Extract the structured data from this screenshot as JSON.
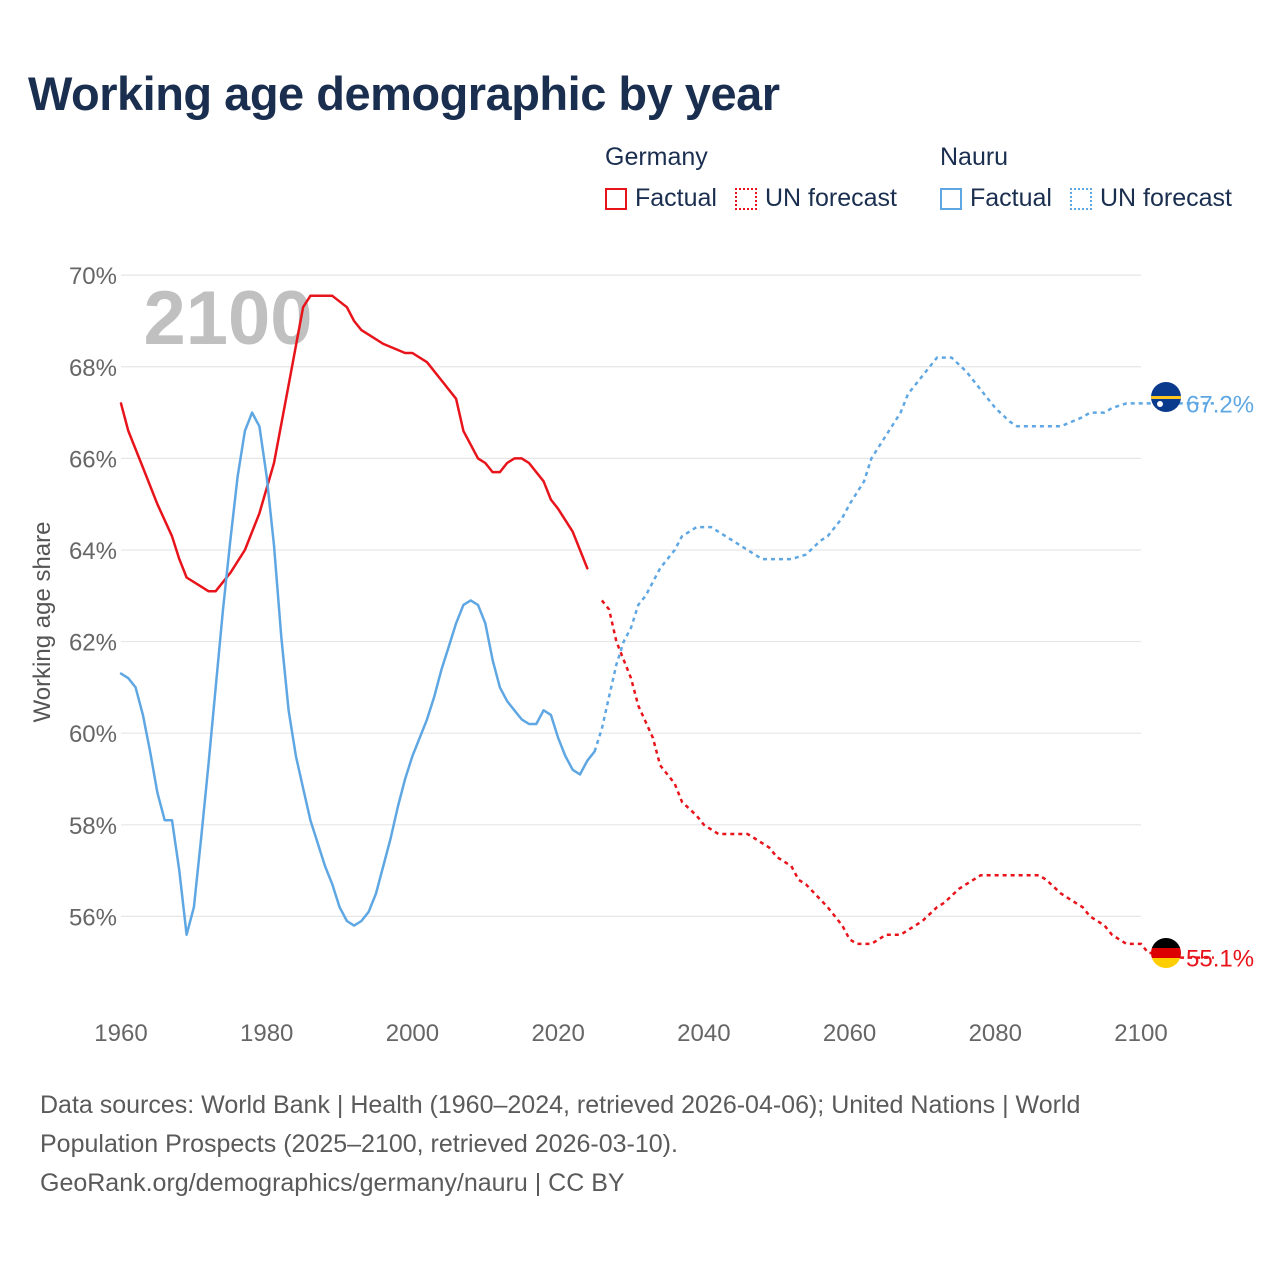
{
  "title": "Working age demographic by year",
  "legend": [
    {
      "country": "Germany",
      "color": "#e8141b",
      "items": [
        {
          "label": "Factual",
          "style": "solid"
        },
        {
          "label": "UN forecast",
          "style": "dotted"
        }
      ]
    },
    {
      "country": "Nauru",
      "color": "#5fa7e3",
      "items": [
        {
          "label": "Factual",
          "style": "solid"
        },
        {
          "label": "UN forecast",
          "style": "dotted"
        }
      ]
    }
  ],
  "chart_data": {
    "type": "line",
    "title": "Working age demographic by year",
    "xlabel": "",
    "ylabel": "Working age share",
    "year_watermark": "2100",
    "xlim": [
      1960,
      2100
    ],
    "ylim": [
      54,
      70.2
    ],
    "xticks": [
      1960,
      1980,
      2000,
      2020,
      2040,
      2060,
      2080,
      2100
    ],
    "yticks": [
      56,
      58,
      60,
      62,
      64,
      66,
      68,
      70
    ],
    "ytick_labels": [
      "56%",
      "58%",
      "60%",
      "62%",
      "64%",
      "66%",
      "68%",
      "70%"
    ],
    "grid": true,
    "factual_end_year": 2025,
    "series": [
      {
        "name": "Germany",
        "color": "#e8141b",
        "end_label": "55.1%",
        "flag": "germany-flag",
        "points": [
          [
            1960,
            67.2
          ],
          [
            1961,
            66.6
          ],
          [
            1963,
            65.8
          ],
          [
            1965,
            65.0
          ],
          [
            1967,
            64.3
          ],
          [
            1968,
            63.8
          ],
          [
            1969,
            63.4
          ],
          [
            1971,
            63.2
          ],
          [
            1972,
            63.1
          ],
          [
            1973,
            63.1
          ],
          [
            1975,
            63.5
          ],
          [
            1977,
            64.0
          ],
          [
            1979,
            64.8
          ],
          [
            1981,
            65.9
          ],
          [
            1983,
            67.6
          ],
          [
            1985,
            69.3
          ],
          [
            1986,
            69.55
          ],
          [
            1989,
            69.55
          ],
          [
            1991,
            69.3
          ],
          [
            1992,
            69.0
          ],
          [
            1993,
            68.8
          ],
          [
            1996,
            68.5
          ],
          [
            1999,
            68.3
          ],
          [
            2000,
            68.3
          ],
          [
            2002,
            68.1
          ],
          [
            2004,
            67.7
          ],
          [
            2006,
            67.3
          ],
          [
            2007,
            66.6
          ],
          [
            2009,
            66.0
          ],
          [
            2010,
            65.9
          ],
          [
            2011,
            65.7
          ],
          [
            2012,
            65.7
          ],
          [
            2013,
            65.9
          ],
          [
            2014,
            66.0
          ],
          [
            2015,
            66.0
          ],
          [
            2016,
            65.9
          ],
          [
            2018,
            65.5
          ],
          [
            2019,
            65.1
          ],
          [
            2020,
            64.9
          ],
          [
            2022,
            64.4
          ],
          [
            2024,
            63.6
          ],
          [
            2026,
            62.9
          ],
          [
            2027,
            62.7
          ],
          [
            2028,
            62.0
          ],
          [
            2030,
            61.2
          ],
          [
            2031,
            60.6
          ],
          [
            2033,
            59.9
          ],
          [
            2034,
            59.3
          ],
          [
            2036,
            58.9
          ],
          [
            2037,
            58.5
          ],
          [
            2039,
            58.2
          ],
          [
            2040,
            58.0
          ],
          [
            2042,
            57.8
          ],
          [
            2044,
            57.8
          ],
          [
            2046,
            57.8
          ],
          [
            2047,
            57.7
          ],
          [
            2049,
            57.5
          ],
          [
            2050,
            57.3
          ],
          [
            2052,
            57.1
          ],
          [
            2053,
            56.8
          ],
          [
            2054,
            56.7
          ],
          [
            2057,
            56.2
          ],
          [
            2059,
            55.8
          ],
          [
            2060,
            55.5
          ],
          [
            2061,
            55.4
          ],
          [
            2063,
            55.4
          ],
          [
            2065,
            55.6
          ],
          [
            2067,
            55.6
          ],
          [
            2068,
            55.7
          ],
          [
            2070,
            55.9
          ],
          [
            2072,
            56.2
          ],
          [
            2073,
            56.3
          ],
          [
            2075,
            56.6
          ],
          [
            2076,
            56.7
          ],
          [
            2078,
            56.9
          ],
          [
            2086,
            56.9
          ],
          [
            2087,
            56.8
          ],
          [
            2089,
            56.5
          ],
          [
            2091,
            56.3
          ],
          [
            2092,
            56.2
          ],
          [
            2093,
            56.0
          ],
          [
            2095,
            55.8
          ],
          [
            2096,
            55.6
          ],
          [
            2097,
            55.5
          ],
          [
            2098,
            55.4
          ],
          [
            2100,
            55.4
          ],
          [
            2101,
            55.2
          ],
          [
            2103,
            55.2
          ],
          [
            2104,
            55.1
          ],
          [
            2110,
            55.1
          ]
        ]
      },
      {
        "name": "Nauru",
        "color": "#5fa7e3",
        "end_label": "67.2%",
        "flag": "nauru-flag",
        "points": [
          [
            1960,
            61.3
          ],
          [
            1961,
            61.2
          ],
          [
            1962,
            61.0
          ],
          [
            1963,
            60.4
          ],
          [
            1964,
            59.6
          ],
          [
            1965,
            58.7
          ],
          [
            1966,
            58.1
          ],
          [
            1967,
            58.1
          ],
          [
            1968,
            57.0
          ],
          [
            1969,
            55.6
          ],
          [
            1970,
            56.2
          ],
          [
            1971,
            57.7
          ],
          [
            1972,
            59.3
          ],
          [
            1973,
            61.0
          ],
          [
            1974,
            62.7
          ],
          [
            1975,
            64.2
          ],
          [
            1976,
            65.6
          ],
          [
            1977,
            66.6
          ],
          [
            1978,
            67.0
          ],
          [
            1979,
            66.7
          ],
          [
            1980,
            65.6
          ],
          [
            1981,
            64.1
          ],
          [
            1982,
            62.1
          ],
          [
            1983,
            60.5
          ],
          [
            1984,
            59.5
          ],
          [
            1985,
            58.8
          ],
          [
            1986,
            58.1
          ],
          [
            1987,
            57.6
          ],
          [
            1988,
            57.1
          ],
          [
            1989,
            56.7
          ],
          [
            1990,
            56.2
          ],
          [
            1991,
            55.9
          ],
          [
            1992,
            55.8
          ],
          [
            1993,
            55.9
          ],
          [
            1994,
            56.1
          ],
          [
            1995,
            56.5
          ],
          [
            1996,
            57.1
          ],
          [
            1997,
            57.7
          ],
          [
            1998,
            58.4
          ],
          [
            1999,
            59.0
          ],
          [
            2000,
            59.5
          ],
          [
            2001,
            59.9
          ],
          [
            2002,
            60.3
          ],
          [
            2003,
            60.8
          ],
          [
            2004,
            61.4
          ],
          [
            2005,
            61.9
          ],
          [
            2006,
            62.4
          ],
          [
            2007,
            62.8
          ],
          [
            2008,
            62.9
          ],
          [
            2009,
            62.8
          ],
          [
            2010,
            62.4
          ],
          [
            2011,
            61.6
          ],
          [
            2012,
            61.0
          ],
          [
            2013,
            60.7
          ],
          [
            2014,
            60.5
          ],
          [
            2015,
            60.3
          ],
          [
            2016,
            60.2
          ],
          [
            2017,
            60.2
          ],
          [
            2018,
            60.5
          ],
          [
            2019,
            60.4
          ],
          [
            2020,
            59.9
          ],
          [
            2021,
            59.5
          ],
          [
            2022,
            59.2
          ],
          [
            2023,
            59.1
          ],
          [
            2024,
            59.4
          ],
          [
            2025,
            59.6
          ],
          [
            2026,
            60.1
          ],
          [
            2027,
            60.8
          ],
          [
            2028,
            61.5
          ],
          [
            2029,
            62.0
          ],
          [
            2030,
            62.3
          ],
          [
            2031,
            62.8
          ],
          [
            2032,
            63.0
          ],
          [
            2033,
            63.3
          ],
          [
            2034,
            63.6
          ],
          [
            2035,
            63.8
          ],
          [
            2036,
            64.0
          ],
          [
            2037,
            64.3
          ],
          [
            2038,
            64.4
          ],
          [
            2039,
            64.5
          ],
          [
            2040,
            64.5
          ],
          [
            2041,
            64.5
          ],
          [
            2042,
            64.4
          ],
          [
            2043,
            64.3
          ],
          [
            2044,
            64.2
          ],
          [
            2045,
            64.1
          ],
          [
            2046,
            64.0
          ],
          [
            2047,
            63.9
          ],
          [
            2048,
            63.8
          ],
          [
            2050,
            63.8
          ],
          [
            2052,
            63.8
          ],
          [
            2054,
            63.9
          ],
          [
            2056,
            64.2
          ],
          [
            2057,
            64.3
          ],
          [
            2059,
            64.7
          ],
          [
            2060,
            65.0
          ],
          [
            2062,
            65.5
          ],
          [
            2063,
            66.0
          ],
          [
            2065,
            66.5
          ],
          [
            2067,
            67.0
          ],
          [
            2068,
            67.4
          ],
          [
            2070,
            67.8
          ],
          [
            2072,
            68.2
          ],
          [
            2074,
            68.2
          ],
          [
            2076,
            67.9
          ],
          [
            2078,
            67.5
          ],
          [
            2080,
            67.1
          ],
          [
            2082,
            66.8
          ],
          [
            2083,
            66.7
          ],
          [
            2087,
            66.7
          ],
          [
            2089,
            66.7
          ],
          [
            2092,
            66.9
          ],
          [
            2093,
            67.0
          ],
          [
            2095,
            67.0
          ],
          [
            2096,
            67.1
          ],
          [
            2098,
            67.2
          ],
          [
            2110,
            67.2
          ]
        ]
      }
    ]
  },
  "footer": {
    "line1": "Data sources: World Bank | Health (1960–2024, retrieved 2026-04-06); United Nations | World",
    "line2": "Population Prospects (2025–2100, retrieved 2026-03-10).",
    "line3": "GeoRank.org/demographics/germany/nauru | CC BY"
  }
}
